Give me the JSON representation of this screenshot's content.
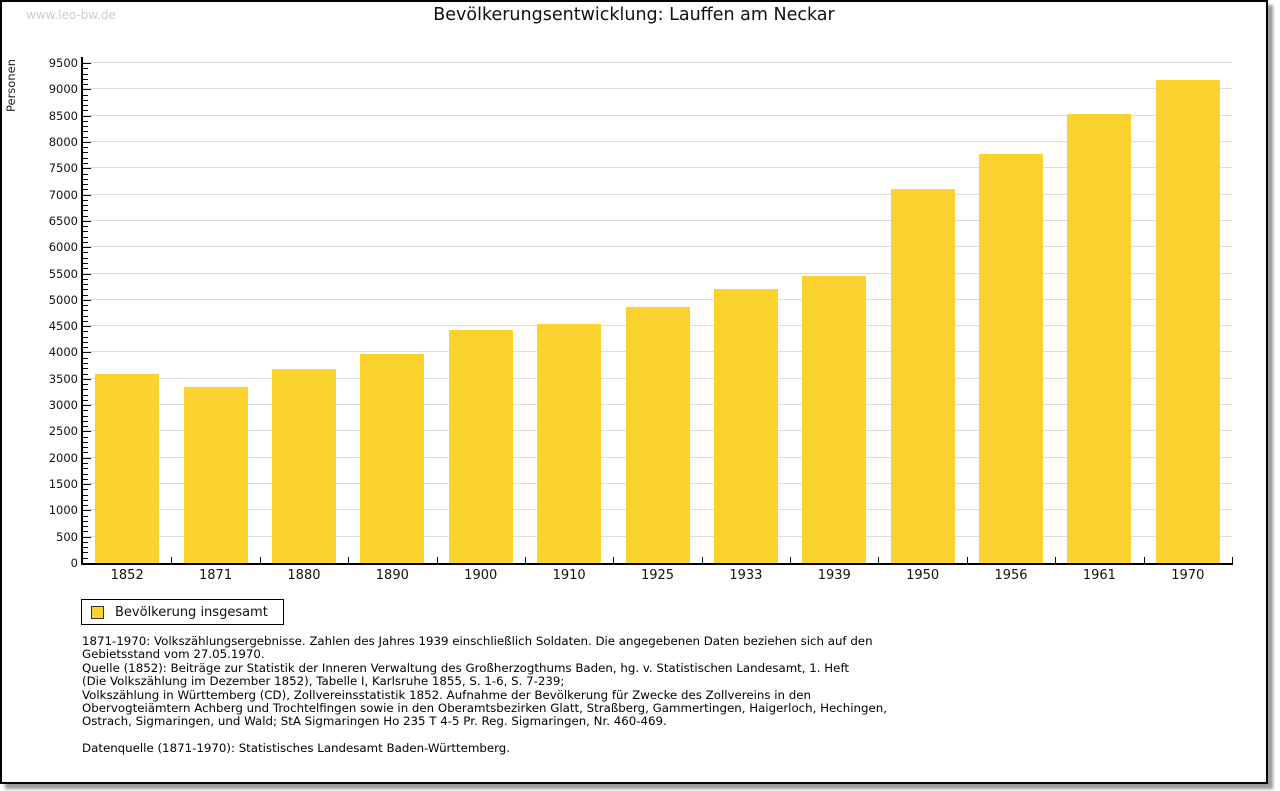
{
  "watermark": "www.leo-bw.de",
  "header": {
    "title": "Bevölkerungsentwicklung: Lauffen am Neckar"
  },
  "chart_data": {
    "type": "bar",
    "title": "Bevölkerungsentwicklung: Lauffen am Neckar",
    "xlabel": "",
    "ylabel": "Personen",
    "categories": [
      "1852",
      "1871",
      "1880",
      "1890",
      "1900",
      "1910",
      "1925",
      "1933",
      "1939",
      "1950",
      "1956",
      "1961",
      "1970"
    ],
    "values": [
      3595,
      3350,
      3690,
      3975,
      4420,
      4545,
      4870,
      5200,
      5450,
      7100,
      7770,
      8540,
      9180
    ],
    "ylim": [
      0,
      9500
    ],
    "ytick_step": 500,
    "yminor_step": 100,
    "grid": true,
    "legend_position": "bottom-left",
    "bar_color": "#FCD32E",
    "gridline_color": "#DDDDDD"
  },
  "legend": {
    "label": "Bevölkerung insgesamt"
  },
  "footnotes": {
    "block1": [
      "1871-1970: Volkszählungsergebnisse. Zahlen des Jahres 1939 einschließlich Soldaten. Die angegebenen Daten beziehen sich auf den",
      "Gebietsstand vom 27.05.1970.",
      "Quelle (1852): Beiträge zur Statistik der Inneren Verwaltung des Großherzogthums Baden, hg. v. Statistischen Landesamt, 1. Heft",
      "(Die Volkszählung im Dezember 1852), Tabelle I, Karlsruhe 1855, S. 1-6, S. 7-239;",
      "Volkszählung in Württemberg (CD), Zollvereinsstatistik 1852. Aufnahme der Bevölkerung für Zwecke des Zollvereins in den",
      "Obervogteiämtern Achberg und Trochtelfingen sowie in den Oberamtsbezirken Glatt, Straßberg, Gammertingen, Haigerloch, Hechingen,",
      "Ostrach, Sigmaringen, und Wald; StA Sigmaringen Ho 235 T 4-5 Pr. Reg. Sigmaringen, Nr. 460-469."
    ],
    "block2": [
      "Datenquelle (1871-1970): Statistisches Landesamt Baden-Württemberg."
    ]
  }
}
